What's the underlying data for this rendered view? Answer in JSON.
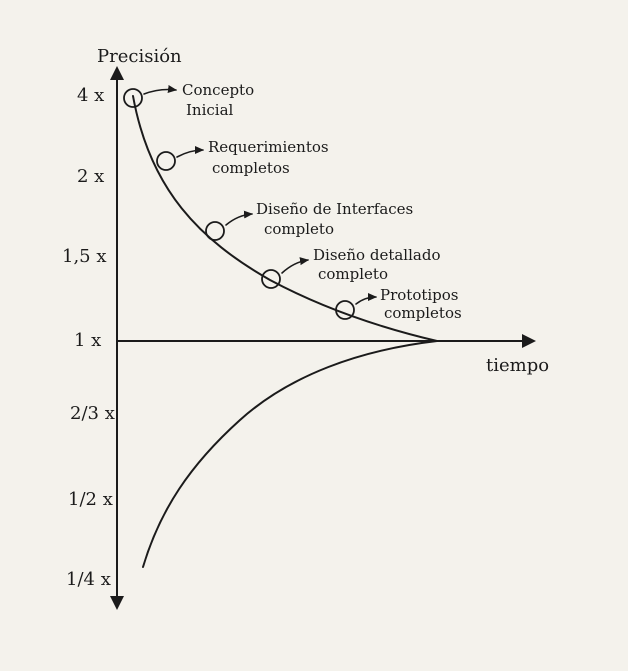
{
  "diagram": {
    "y_axis_label": "Precisión",
    "x_axis_label": "tiempo",
    "y_ticks": [
      "4 x",
      "2 x",
      "1,5 x",
      "1 x",
      "2/3 x",
      "1/2 x",
      "1/4 x"
    ],
    "milestones": [
      {
        "line1": "Concepto",
        "line2": "Inicial"
      },
      {
        "line1": "Requerimientos",
        "line2": "completos"
      },
      {
        "line1": "Diseño de Interfaces",
        "line2": "completo"
      },
      {
        "line1": "Diseño detallado",
        "line2": "completo"
      },
      {
        "line1": "Prototipos",
        "line2": "completos"
      }
    ]
  }
}
